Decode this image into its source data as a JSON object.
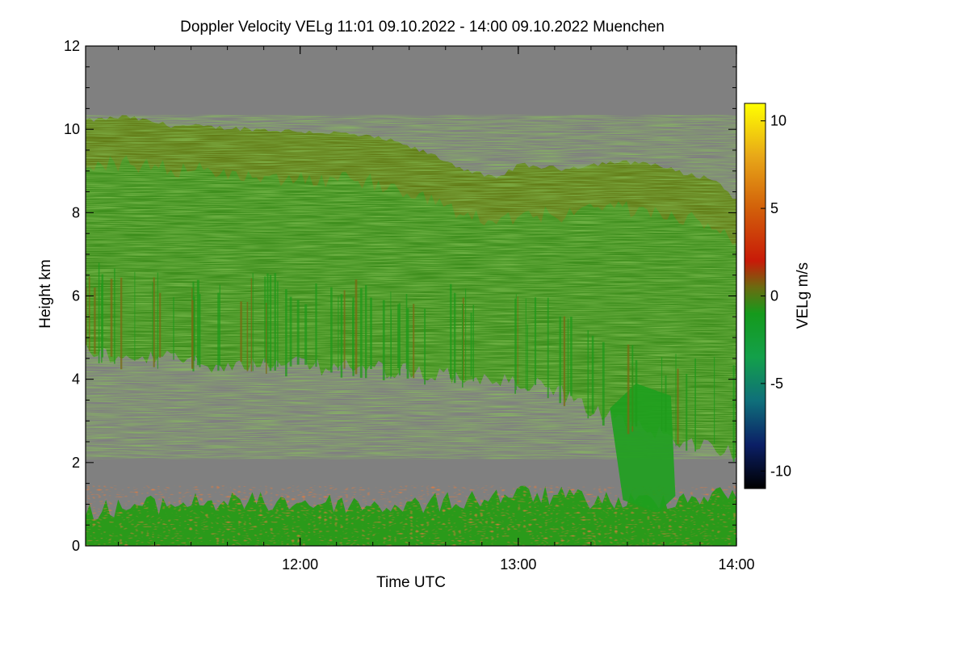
{
  "chart_data": {
    "type": "heatmap",
    "title": "Doppler Velocity VELg   11:01 09.10.2022 - 14:00 09.10.2022 Muenchen",
    "xlabel": "Time UTC",
    "ylabel": "Height km",
    "colorbar_label": "VELg m/s",
    "x_range_hours": [
      11.0167,
      14.0
    ],
    "x_ticks": [
      {
        "value": 12,
        "label": "12:00"
      },
      {
        "value": 13,
        "label": "13:00"
      },
      {
        "value": 14,
        "label": "14:00"
      }
    ],
    "ylim": [
      0,
      12
    ],
    "y_ticks": [
      {
        "value": 0,
        "label": "0"
      },
      {
        "value": 2,
        "label": "2"
      },
      {
        "value": 4,
        "label": "4"
      },
      {
        "value": 6,
        "label": "6"
      },
      {
        "value": 8,
        "label": "8"
      },
      {
        "value": 10,
        "label": "10"
      },
      {
        "value": 12,
        "label": "12"
      }
    ],
    "colorbar_range": [
      -11,
      11
    ],
    "colorbar_ticks": [
      {
        "value": 10,
        "label": "10"
      },
      {
        "value": 5,
        "label": "5"
      },
      {
        "value": 0,
        "label": "0"
      },
      {
        "value": -5,
        "label": "-5"
      },
      {
        "value": -10,
        "label": "-10"
      }
    ],
    "colorbar_stops": [
      {
        "value": -11,
        "color": "#000000"
      },
      {
        "value": -8.5,
        "color": "#0b1f66"
      },
      {
        "value": -6,
        "color": "#0f6f7a"
      },
      {
        "value": -3.5,
        "color": "#13a04a"
      },
      {
        "value": -1,
        "color": "#159a1c"
      },
      {
        "value": 0.5,
        "color": "#6b6b10"
      },
      {
        "value": 2,
        "color": "#c81a08"
      },
      {
        "value": 5,
        "color": "#d2600a"
      },
      {
        "value": 8,
        "color": "#e8a818"
      },
      {
        "value": 11,
        "color": "#ffff00"
      }
    ],
    "colors": {
      "background": "#808080",
      "cloud_main": "#3f8f1e",
      "cloud_top": "#6a7a18",
      "descent": "#1ea01e",
      "boundary_red": "#b83a10",
      "boundary_green": "#2a9a1a"
    },
    "cloud_top_km": [
      {
        "t": 11.0167,
        "h": 10.2
      },
      {
        "t": 11.2,
        "h": 10.3
      },
      {
        "t": 11.4,
        "h": 10.1
      },
      {
        "t": 11.6,
        "h": 10.05
      },
      {
        "t": 11.8,
        "h": 10.0
      },
      {
        "t": 12.0,
        "h": 9.95
      },
      {
        "t": 12.2,
        "h": 9.9
      },
      {
        "t": 12.4,
        "h": 9.75
      },
      {
        "t": 12.6,
        "h": 9.4
      },
      {
        "t": 12.75,
        "h": 9.05
      },
      {
        "t": 12.9,
        "h": 8.8
      },
      {
        "t": 13.0,
        "h": 9.15
      },
      {
        "t": 13.2,
        "h": 9.05
      },
      {
        "t": 13.4,
        "h": 9.2
      },
      {
        "t": 13.6,
        "h": 9.2
      },
      {
        "t": 13.75,
        "h": 8.95
      },
      {
        "t": 13.9,
        "h": 8.8
      },
      {
        "t": 14.0,
        "h": 8.3
      }
    ],
    "cloud_base_km": [
      {
        "t": 11.0167,
        "h": 5.0
      },
      {
        "t": 11.2,
        "h": 4.65
      },
      {
        "t": 11.4,
        "h": 4.75
      },
      {
        "t": 11.6,
        "h": 4.6
      },
      {
        "t": 11.8,
        "h": 4.6
      },
      {
        "t": 12.0,
        "h": 4.55
      },
      {
        "t": 12.2,
        "h": 4.5
      },
      {
        "t": 12.4,
        "h": 4.45
      },
      {
        "t": 12.6,
        "h": 4.35
      },
      {
        "t": 12.8,
        "h": 4.25
      },
      {
        "t": 13.0,
        "h": 4.1
      },
      {
        "t": 13.15,
        "h": 4.0
      },
      {
        "t": 13.3,
        "h": 3.6
      },
      {
        "t": 13.45,
        "h": 3.2
      },
      {
        "t": 13.6,
        "h": 3.0
      },
      {
        "t": 13.8,
        "h": 2.7
      },
      {
        "t": 14.0,
        "h": 2.5
      }
    ],
    "boundary_layer_top_km": [
      {
        "t": 11.0167,
        "h": 1.1
      },
      {
        "t": 11.5,
        "h": 1.3
      },
      {
        "t": 12.0,
        "h": 1.3
      },
      {
        "t": 12.5,
        "h": 1.2
      },
      {
        "t": 13.0,
        "h": 1.5
      },
      {
        "t": 13.5,
        "h": 1.3
      },
      {
        "t": 14.0,
        "h": 1.5
      }
    ],
    "descending_shaft": {
      "t_start": 13.42,
      "t_end": 13.72,
      "h_top": 3.3,
      "h_bottom": 0.8
    }
  }
}
